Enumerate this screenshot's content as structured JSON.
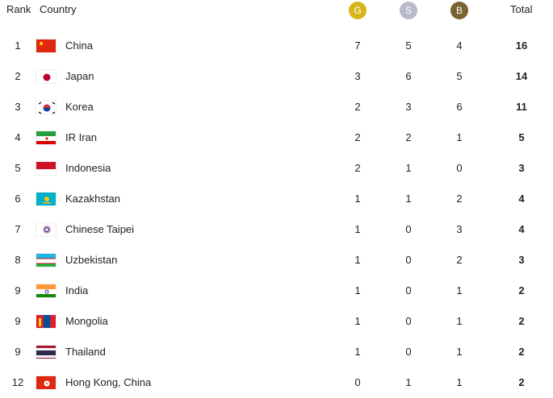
{
  "header": {
    "rank": "Rank",
    "country": "Country",
    "gold": "G",
    "silver": "S",
    "bronze": "B",
    "total": "Total"
  },
  "colors": {
    "gold": "#d9b51c",
    "silver": "#b9b9cc",
    "bronze": "#7a6233"
  },
  "rows": [
    {
      "rank": "1",
      "country": "China",
      "flag": "flag-china-icon",
      "g": "7",
      "s": "5",
      "b": "4",
      "total": "16"
    },
    {
      "rank": "2",
      "country": "Japan",
      "flag": "flag-japan-icon",
      "g": "3",
      "s": "6",
      "b": "5",
      "total": "14"
    },
    {
      "rank": "3",
      "country": "Korea",
      "flag": "flag-korea-icon",
      "g": "2",
      "s": "3",
      "b": "6",
      "total": "11"
    },
    {
      "rank": "4",
      "country": "IR Iran",
      "flag": "flag-iran-icon",
      "g": "2",
      "s": "2",
      "b": "1",
      "total": "5"
    },
    {
      "rank": "5",
      "country": "Indonesia",
      "flag": "flag-indonesia-icon",
      "g": "2",
      "s": "1",
      "b": "0",
      "total": "3"
    },
    {
      "rank": "6",
      "country": "Kazakhstan",
      "flag": "flag-kazakhstan-icon",
      "g": "1",
      "s": "1",
      "b": "2",
      "total": "4"
    },
    {
      "rank": "7",
      "country": "Chinese Taipei",
      "flag": "flag-chinese-taipei-icon",
      "g": "1",
      "s": "0",
      "b": "3",
      "total": "4"
    },
    {
      "rank": "8",
      "country": "Uzbekistan",
      "flag": "flag-uzbekistan-icon",
      "g": "1",
      "s": "0",
      "b": "2",
      "total": "3"
    },
    {
      "rank": "9",
      "country": "India",
      "flag": "flag-india-icon",
      "g": "1",
      "s": "0",
      "b": "1",
      "total": "2"
    },
    {
      "rank": "9",
      "country": "Mongolia",
      "flag": "flag-mongolia-icon",
      "g": "1",
      "s": "0",
      "b": "1",
      "total": "2"
    },
    {
      "rank": "9",
      "country": "Thailand",
      "flag": "flag-thailand-icon",
      "g": "1",
      "s": "0",
      "b": "1",
      "total": "2"
    },
    {
      "rank": "12",
      "country": "Hong Kong, China",
      "flag": "flag-hong-kong-icon",
      "g": "0",
      "s": "1",
      "b": "1",
      "total": "2"
    }
  ]
}
